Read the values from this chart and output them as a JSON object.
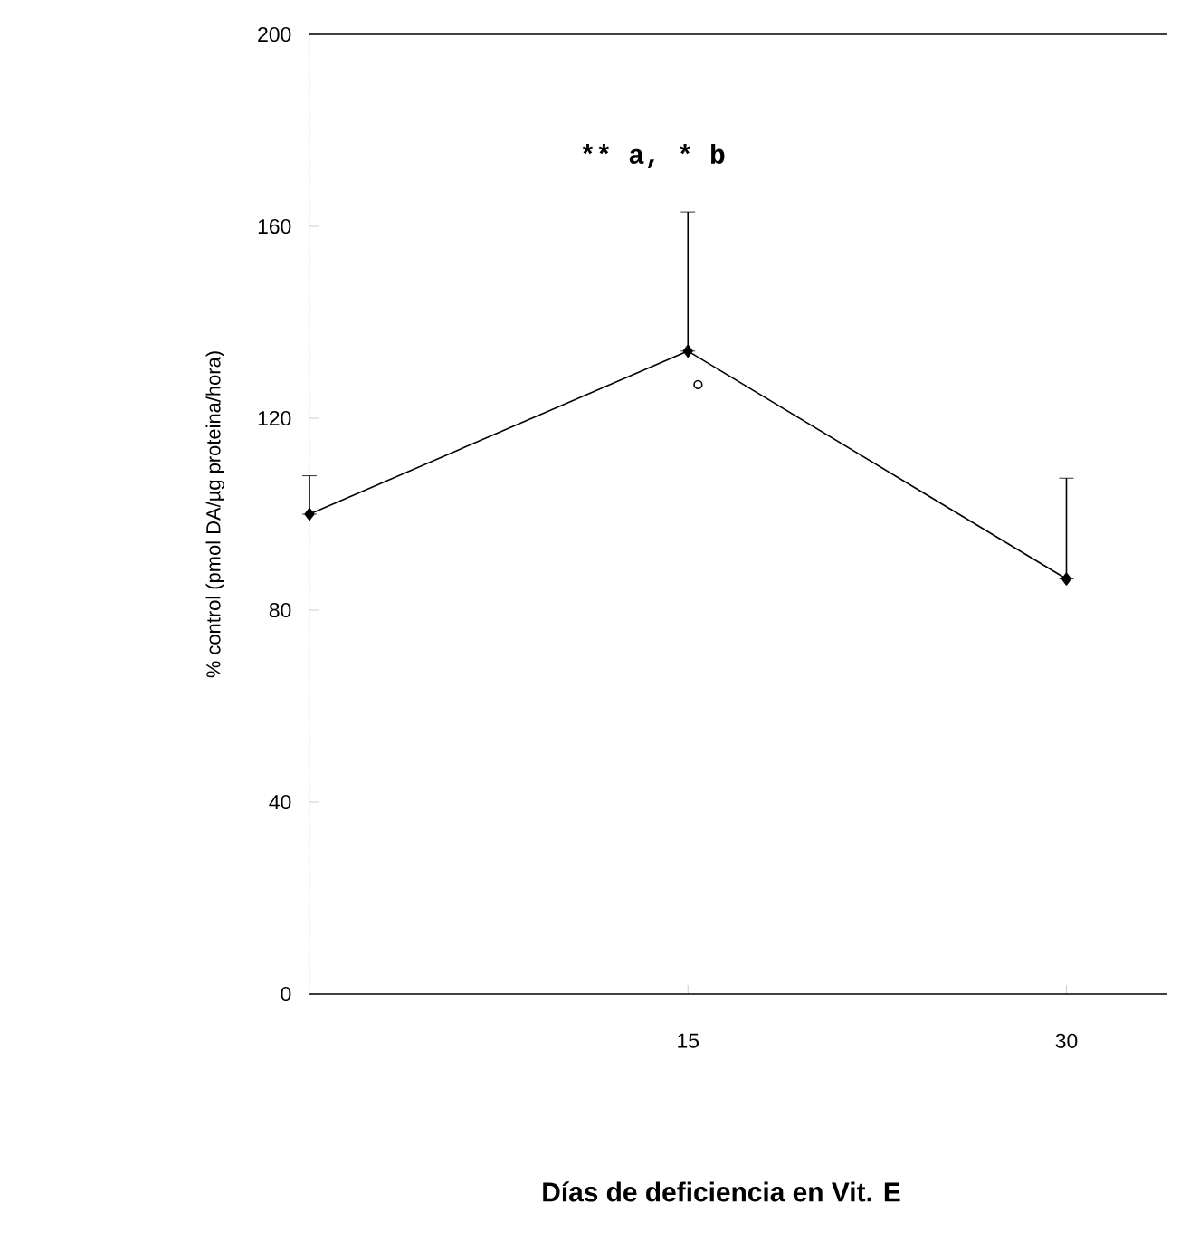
{
  "chart_data": {
    "type": "line",
    "xlabel": "Días de deficiencia en Vit. E",
    "ylabel": "% control (pmol DA/µg proteina/hora)",
    "xlim": [
      0,
      34
    ],
    "xticks": [
      15,
      30
    ],
    "ylim": [
      0,
      200
    ],
    "yticks": [
      0,
      40,
      80,
      120,
      160,
      200
    ],
    "series": [
      {
        "x": [
          0,
          15,
          30
        ],
        "values": [
          100,
          134,
          86.5
        ],
        "errors": [
          [
            100,
            108
          ],
          [
            134,
            163
          ],
          [
            86.5,
            107.5
          ]
        ],
        "color": "#000000",
        "marker": "diamond"
      },
      {
        "type": "scatter",
        "x": [
          15.4
        ],
        "values": [
          127
        ],
        "color": "#000000",
        "marker": "circle"
      }
    ],
    "annotations": [
      "** a, * b"
    ],
    "grid": false,
    "line_style": "solid"
  }
}
